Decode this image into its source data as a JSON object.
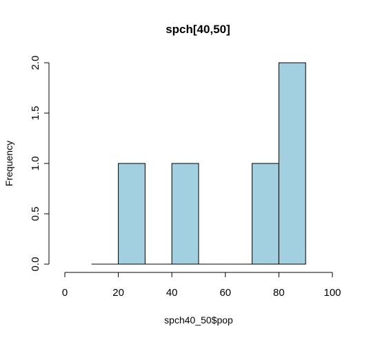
{
  "chart_data": {
    "type": "bar",
    "subtype": "histogram",
    "title": "spch[40,50]",
    "xlabel": "spch40_50$pop",
    "ylabel": "Frequency",
    "bins": [
      {
        "from": 10,
        "to": 20,
        "count": 0
      },
      {
        "from": 20,
        "to": 30,
        "count": 1
      },
      {
        "from": 30,
        "to": 40,
        "count": 0
      },
      {
        "from": 40,
        "to": 50,
        "count": 1
      },
      {
        "from": 50,
        "to": 60,
        "count": 0
      },
      {
        "from": 60,
        "to": 70,
        "count": 0
      },
      {
        "from": 70,
        "to": 80,
        "count": 1
      },
      {
        "from": 80,
        "to": 90,
        "count": 2
      }
    ],
    "xlim": [
      0,
      100
    ],
    "ylim": [
      0,
      2
    ],
    "x_ticks": [
      0,
      20,
      40,
      60,
      80,
      100
    ],
    "x_tick_labels": [
      "0",
      "20",
      "40",
      "60",
      "80",
      "100"
    ],
    "y_ticks": [
      0,
      0.5,
      1,
      1.5,
      2
    ],
    "y_tick_labels": [
      "0.0",
      "0.5",
      "1.0",
      "1.5",
      "2.0"
    ],
    "bar_color": "#a2d0e0",
    "grid": false
  }
}
